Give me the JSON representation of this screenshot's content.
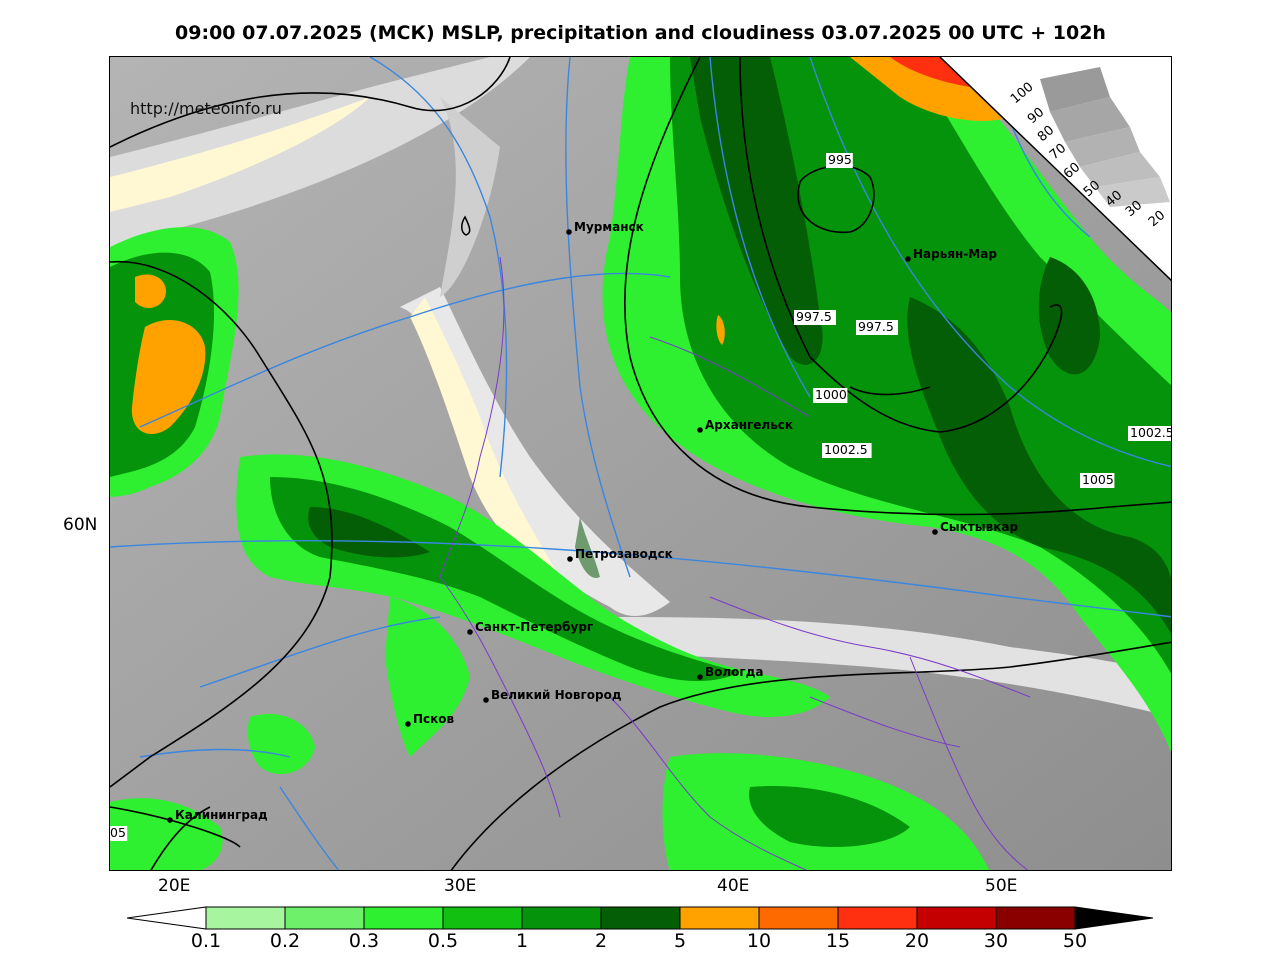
{
  "title": "09:00 07.07.2025 (МСК) MSLP, precipitation and cloudiness 03.07.2025 00 UTC + 102h",
  "watermark": "http://meteoinfo.ru",
  "colors": {
    "precip": [
      "#a8f5a0",
      "#6ef06a",
      "#2ef030",
      "#12c012",
      "#04930a",
      "#045e06",
      "#ffa200",
      "#ff6a00",
      "#ff3010",
      "#c40000",
      "#8a0000",
      "#000000"
    ],
    "cloud_dark": "#8c8c8c",
    "cloud_light": "#e6e6e6",
    "clear": "#fff8d2",
    "isobar": "#000000",
    "lat_lon_line": "#3a86e0",
    "borders": "#7a3bc8"
  },
  "axes": {
    "lon_labels": [
      "20E",
      "30E",
      "40E",
      "50E"
    ],
    "lat_labels": [
      "60N"
    ]
  },
  "isobar_labels": [
    "995",
    "997.5",
    "997.5",
    "1000",
    "1002.5",
    "1002.5",
    "1005",
    "05"
  ],
  "cities": [
    {
      "name": "Мурманск"
    },
    {
      "name": "Нарьян-Мар"
    },
    {
      "name": "Архангельск"
    },
    {
      "name": "Сыктывкар"
    },
    {
      "name": "Петрозаводск"
    },
    {
      "name": "Санкт-Петербург"
    },
    {
      "name": "Вологда"
    },
    {
      "name": "Великий Новгород"
    },
    {
      "name": "Псков"
    },
    {
      "name": "Калининград"
    }
  ],
  "cloud_scale_labels": [
    "100",
    "90",
    "80",
    "70",
    "60",
    "50",
    "40",
    "30",
    "20"
  ],
  "precip_scale_labels": [
    "0.1",
    "0.2",
    "0.3",
    "0.5",
    "1",
    "2",
    "5",
    "10",
    "15",
    "20",
    "30",
    "50"
  ]
}
